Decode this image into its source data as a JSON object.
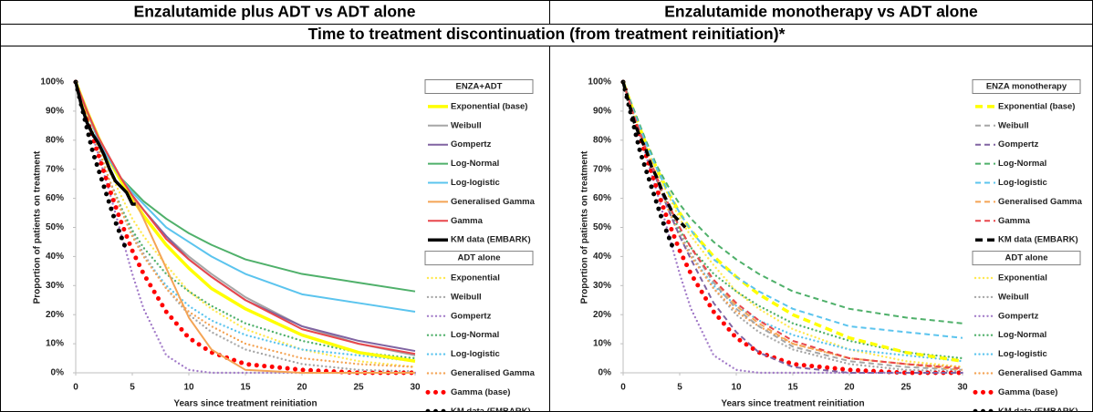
{
  "table": {
    "header": [
      "Enzalutamide plus ADT vs ADT alone",
      "Enzalutamide monotherapy vs ADT alone"
    ],
    "subheader": "Time to treatment discontinuation (from treatment reinitiation)*"
  },
  "chart_data": [
    {
      "type": "line",
      "ylabel": "Proportion of patients on treatment",
      "xlabel": "Years since treatment reinitiation",
      "xlim": [
        0,
        30
      ],
      "xticks": [
        0,
        5,
        10,
        15,
        20,
        25,
        30
      ],
      "ylim": [
        0,
        100
      ],
      "yticks": [
        {
          "value": 0,
          "label": "0%"
        },
        {
          "value": 10,
          "label": "10%"
        },
        {
          "value": 20,
          "label": "20%"
        },
        {
          "value": 30,
          "label": "30%"
        },
        {
          "value": 40,
          "label": "40%"
        },
        {
          "value": 50,
          "label": "50%"
        },
        {
          "value": 60,
          "label": "60%"
        },
        {
          "value": 70,
          "label": "70%"
        },
        {
          "value": 80,
          "label": "80%"
        },
        {
          "value": 90,
          "label": "90%"
        },
        {
          "value": 100,
          "label": "100%"
        }
      ],
      "x": [
        0,
        1,
        2,
        3,
        4,
        5,
        6,
        8,
        10,
        12,
        15,
        20,
        25,
        30
      ],
      "series_groups": [
        {
          "title": "ENZA+ADT",
          "series": [
            {
              "name": "Exponential (base)",
              "color": "#ffff00",
              "style": "thick-solid",
              "values": [
                100,
                90,
                81,
                73,
                66,
                60,
                54,
                44,
                36,
                29,
                22,
                13,
                7,
                4
              ]
            },
            {
              "name": "Weibull",
              "color": "#a6a6a6",
              "style": "solid",
              "values": [
                100,
                90,
                81,
                74,
                67,
                61,
                56,
                47,
                40,
                34,
                26,
                16,
                10,
                6
              ]
            },
            {
              "name": "Gompertz",
              "color": "#8064a2",
              "style": "solid",
              "values": [
                100,
                90,
                81,
                74,
                67,
                61,
                56,
                47,
                39,
                33,
                25,
                16,
                11,
                7.5
              ]
            },
            {
              "name": "Log-Normal",
              "color": "#4fb06a",
              "style": "solid",
              "values": [
                100,
                90,
                80,
                73,
                67,
                63,
                59,
                53,
                48,
                44,
                39,
                34,
                31,
                28
              ]
            },
            {
              "name": "Log-logistic",
              "color": "#5bc4ee",
              "style": "solid",
              "values": [
                100,
                90,
                80,
                73,
                67,
                62,
                58,
                50,
                45,
                40,
                34,
                27,
                24,
                21
              ]
            },
            {
              "name": "Generalised Gamma",
              "color": "#f4a455",
              "style": "solid",
              "values": [
                100,
                90,
                81,
                74,
                67,
                61,
                53,
                36,
                19,
                8,
                1,
                0,
                0,
                0
              ]
            },
            {
              "name": "Gamma",
              "color": "#e8474c",
              "style": "solid",
              "values": [
                100,
                90,
                81,
                74,
                67,
                61,
                56,
                46,
                39,
                33,
                25,
                15,
                10,
                6.5
              ]
            },
            {
              "name": "KM data (EMBARK)",
              "color": "#000000",
              "style": "thick-solid",
              "x": [
                0,
                0.5,
                1,
                1.5,
                2,
                2.5,
                3,
                3.5,
                4,
                4.5,
                5,
                5.3
              ],
              "values": [
                100,
                92,
                86,
                82,
                79,
                75,
                70,
                66,
                64,
                62,
                58,
                58
              ]
            }
          ]
        },
        {
          "title": "ADT alone",
          "series": [
            {
              "name": "Exponential",
              "color": "#ffe84d",
              "style": "dotted",
              "values": [
                100,
                88,
                78,
                69,
                61,
                53,
                47,
                37,
                28,
                22,
                15,
                8,
                4,
                2
              ]
            },
            {
              "name": "Weibull",
              "color": "#a6a6a6",
              "style": "dotted",
              "values": [
                100,
                88,
                77,
                66,
                57,
                48,
                41,
                29,
                20,
                14,
                8,
                3,
                1,
                0.5
              ]
            },
            {
              "name": "Gompertz",
              "color": "#a37cc9",
              "style": "dotted",
              "values": [
                100,
                88,
                75,
                62,
                48,
                34,
                22,
                6,
                1,
                0,
                0,
                0,
                0,
                0
              ]
            },
            {
              "name": "Log-Normal",
              "color": "#4fb06a",
              "style": "dotted",
              "values": [
                100,
                88,
                77,
                66,
                57,
                49,
                43,
                34,
                28,
                23,
                17,
                11,
                7,
                5
              ]
            },
            {
              "name": "Log-logistic",
              "color": "#5bc4ee",
              "style": "dotted",
              "values": [
                100,
                88,
                77,
                66,
                56,
                47,
                40,
                30,
                23,
                18,
                13,
                8,
                6,
                4
              ]
            },
            {
              "name": "Generalised Gamma",
              "color": "#f4a455",
              "style": "dotted",
              "values": [
                100,
                88,
                77,
                66,
                56,
                47,
                40,
                29,
                21,
                16,
                10,
                5,
                3,
                2
              ]
            },
            {
              "name": "Gamma (base)",
              "color": "#ff0000",
              "style": "dots",
              "values": [
                100,
                87,
                75,
                63,
                52,
                42,
                34,
                21,
                12,
                7,
                3,
                1,
                0,
                0
              ]
            },
            {
              "name": "KM data (EMBARK)",
              "color": "#000000",
              "style": "dots",
              "x": [
                0,
                0.5,
                1,
                1.5,
                2,
                2.5,
                3,
                3.5,
                4,
                4.5
              ],
              "values": [
                100,
                92,
                84,
                76,
                70,
                64,
                58,
                52,
                47,
                42
              ]
            }
          ]
        }
      ]
    },
    {
      "type": "line",
      "ylabel": "Proportion of patients on treatment",
      "xlabel": "Years since treatment reinitiation",
      "xlim": [
        0,
        30
      ],
      "xticks": [
        0,
        5,
        10,
        15,
        20,
        25,
        30
      ],
      "ylim": [
        0,
        100
      ],
      "yticks": [
        {
          "value": 0,
          "label": "0%"
        },
        {
          "value": 10,
          "label": "10%"
        },
        {
          "value": 20,
          "label": "20%"
        },
        {
          "value": 30,
          "label": "30%"
        },
        {
          "value": 40,
          "label": "40%"
        },
        {
          "value": 50,
          "label": "50%"
        },
        {
          "value": 60,
          "label": "60%"
        },
        {
          "value": 70,
          "label": "70%"
        },
        {
          "value": 80,
          "label": "80%"
        },
        {
          "value": 90,
          "label": "90%"
        },
        {
          "value": 100,
          "label": "100%"
        }
      ],
      "x": [
        0,
        1,
        2,
        3,
        4,
        5,
        6,
        8,
        10,
        12,
        15,
        20,
        25,
        30
      ],
      "series_groups": [
        {
          "title": "ENZA monotherapy",
          "series": [
            {
              "name": "Exponential (base)",
              "color": "#ffff00",
              "style": "thick-dashed",
              "values": [
                100,
                89,
                79,
                70,
                62,
                55,
                49,
                40,
                33,
                27,
                20,
                12,
                7,
                4
              ]
            },
            {
              "name": "Weibull",
              "color": "#a6a6a6",
              "style": "dashed",
              "values": [
                100,
                88,
                77,
                67,
                58,
                50,
                43,
                31,
                22,
                16,
                9,
                4,
                2,
                1
              ]
            },
            {
              "name": "Gompertz",
              "color": "#8064a2",
              "style": "dashed",
              "values": [
                100,
                88,
                77,
                66,
                56,
                47,
                39,
                24,
                14,
                7,
                2,
                0,
                0,
                0
              ]
            },
            {
              "name": "Log-Normal",
              "color": "#4fb06a",
              "style": "dashed",
              "values": [
                100,
                90,
                80,
                71,
                64,
                58,
                53,
                45,
                39,
                34,
                28,
                22,
                19,
                17
              ]
            },
            {
              "name": "Log-logistic",
              "color": "#5bc4ee",
              "style": "dashed",
              "values": [
                100,
                89,
                79,
                70,
                62,
                55,
                49,
                39,
                33,
                28,
                22,
                16,
                14,
                12
              ]
            },
            {
              "name": "Generalised Gamma",
              "color": "#f4a455",
              "style": "dashed",
              "values": [
                100,
                88,
                77,
                67,
                58,
                50,
                43,
                32,
                23,
                17,
                10,
                5,
                3,
                1
              ]
            },
            {
              "name": "Gamma",
              "color": "#e8474c",
              "style": "dashed",
              "values": [
                100,
                88,
                77,
                67,
                58,
                50,
                43,
                32,
                24,
                18,
                11,
                5,
                3,
                1.5
              ]
            },
            {
              "name": "KM data (EMBARK)",
              "color": "#000000",
              "style": "thick-dashed",
              "x": [
                0,
                0.5,
                1,
                1.5,
                2,
                2.5,
                3,
                3.5,
                4,
                4.5,
                5,
                5.5
              ],
              "values": [
                100,
                93,
                86,
                81,
                77,
                71,
                67,
                62,
                58,
                54,
                52,
                50
              ]
            }
          ]
        },
        {
          "title": "ADT alone",
          "series": [
            {
              "name": "Exponential",
              "color": "#ffe84d",
              "style": "dotted",
              "values": [
                100,
                88,
                78,
                69,
                61,
                53,
                47,
                37,
                28,
                22,
                15,
                8,
                4,
                2
              ]
            },
            {
              "name": "Weibull",
              "color": "#a6a6a6",
              "style": "dotted",
              "values": [
                100,
                88,
                77,
                66,
                57,
                48,
                41,
                29,
                20,
                14,
                8,
                3,
                1,
                0.5
              ]
            },
            {
              "name": "Gompertz",
              "color": "#a37cc9",
              "style": "dotted",
              "values": [
                100,
                88,
                75,
                62,
                48,
                34,
                22,
                6,
                1,
                0,
                0,
                0,
                0,
                0
              ]
            },
            {
              "name": "Log-Normal",
              "color": "#4fb06a",
              "style": "dotted",
              "values": [
                100,
                88,
                77,
                66,
                57,
                49,
                43,
                34,
                28,
                23,
                17,
                11,
                7,
                5
              ]
            },
            {
              "name": "Log-logistic",
              "color": "#5bc4ee",
              "style": "dotted",
              "values": [
                100,
                88,
                77,
                66,
                56,
                47,
                40,
                30,
                23,
                18,
                13,
                8,
                6,
                4
              ]
            },
            {
              "name": "Generalised Gamma",
              "color": "#f4a455",
              "style": "dotted",
              "values": [
                100,
                88,
                77,
                66,
                56,
                47,
                40,
                29,
                21,
                16,
                10,
                5,
                3,
                2
              ]
            },
            {
              "name": "Gamma (base)",
              "color": "#ff0000",
              "style": "dots",
              "values": [
                100,
                87,
                75,
                63,
                52,
                42,
                34,
                21,
                12,
                7,
                3,
                1,
                0,
                0
              ]
            },
            {
              "name": "KM data (EMBARK)",
              "color": "#000000",
              "style": "dots",
              "x": [
                0,
                0.5,
                1,
                1.5,
                2,
                2.5,
                3,
                3.5,
                4,
                4.5
              ],
              "values": [
                100,
                92,
                84,
                76,
                70,
                64,
                58,
                52,
                47,
                42
              ]
            }
          ]
        }
      ]
    }
  ]
}
